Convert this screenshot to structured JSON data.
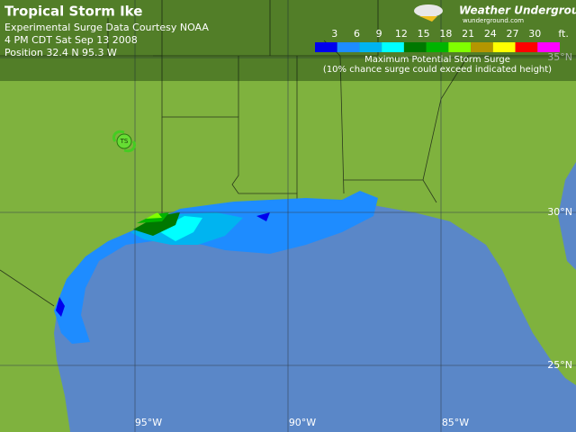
{
  "header": {
    "title": "Tropical Storm Ike",
    "lines": [
      "Experimental Surge Data Courtesy NOAA",
      "4 PM CDT Sat Sep 13 2008",
      "Position 32.4 N 95.3 W"
    ]
  },
  "brand": {
    "name": "Weather Underground",
    "url": "wunderground.com"
  },
  "legend": {
    "values": [
      "3",
      "6",
      "9",
      "12",
      "15",
      "18",
      "21",
      "24",
      "27",
      "30"
    ],
    "unit": "ft.",
    "colors": [
      "#0000ee",
      "#1e8cff",
      "#00b4f0",
      "#00ffff",
      "#007800",
      "#00b400",
      "#80ff00",
      "#b49600",
      "#ffff00",
      "#ff0000",
      "#ff00ff"
    ],
    "title": "Maximum Potential Storm Surge",
    "note": "(10% chance surge could exceed indicated height)"
  },
  "grid": {
    "longitudes": [
      "95°W",
      "90°W",
      "85°W"
    ],
    "latitudes": [
      "35°N",
      "30°N",
      "25°N"
    ]
  },
  "storm": {
    "label": "TS"
  }
}
